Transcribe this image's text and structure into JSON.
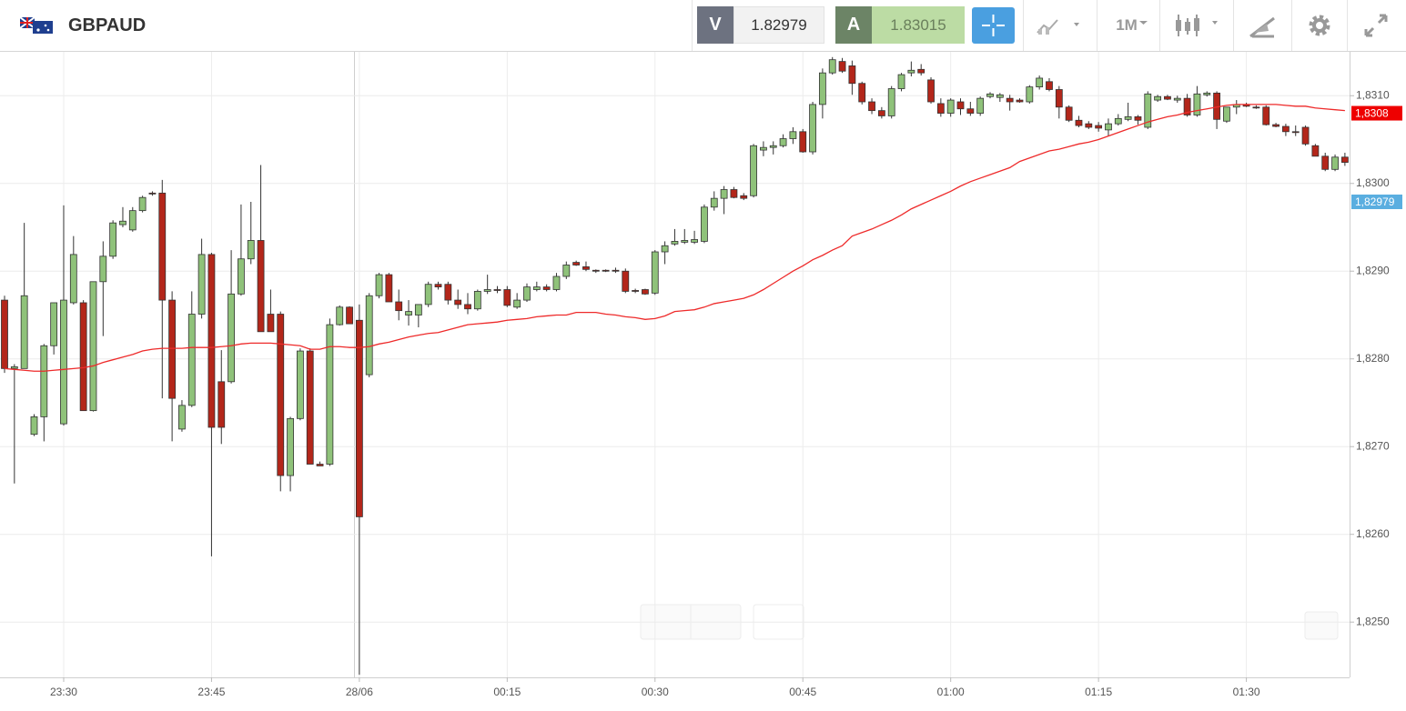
{
  "header": {
    "symbol": "GBPAUD",
    "sell_label": "V",
    "sell_price": 1.82979,
    "buy_label": "A",
    "buy_price": 1.83015,
    "timeframe": "1M"
  },
  "chart_data": {
    "type": "candlestick",
    "categories": [
      null,
      null,
      null,
      null,
      null,
      null,
      "23:30",
      null,
      null,
      null,
      null,
      null,
      null,
      null,
      null,
      null,
      null,
      null,
      null,
      null,
      null,
      "23:45",
      null,
      null,
      null,
      null,
      null,
      null,
      null,
      null,
      null,
      null,
      null,
      null,
      null,
      null,
      "28/06",
      null,
      null,
      null,
      null,
      null,
      null,
      null,
      null,
      null,
      null,
      null,
      null,
      null,
      null,
      "00:15",
      null,
      null,
      null,
      null,
      null,
      null,
      null,
      null,
      null,
      null,
      null,
      null,
      null,
      null,
      "00:30",
      null,
      null,
      null,
      null,
      null,
      null,
      null,
      null,
      null,
      null,
      null,
      null,
      null,
      null,
      "00:45",
      null,
      null,
      null,
      null,
      null,
      null,
      null,
      null,
      null,
      null,
      null,
      null,
      null,
      null,
      "01:00",
      null,
      null,
      null,
      null,
      null,
      null,
      null,
      null,
      null,
      null,
      null,
      null,
      null,
      null,
      "01:15",
      null,
      null,
      null,
      null,
      null,
      null,
      null,
      null,
      null,
      null,
      null,
      null,
      null,
      null,
      "01:30",
      null,
      null,
      null,
      null,
      null,
      null,
      null,
      null,
      null,
      null
    ],
    "open": [
      1.82867,
      1.82789,
      1.82789,
      1.82714,
      1.82734,
      1.82815,
      1.82726,
      1.82864,
      1.82864,
      1.82741,
      1.82888,
      1.82917,
      1.82953,
      1.82947,
      1.82969,
      1.82989,
      1.82989,
      1.82867,
      1.8272,
      1.82747,
      1.82851,
      1.82919,
      1.82774,
      1.82774,
      1.82874,
      1.82914,
      1.82935,
      1.82851,
      1.82851,
      1.82667,
      1.82732,
      1.82809,
      1.8268,
      1.8268,
      1.82839,
      1.82859,
      1.82844,
      1.82782,
      1.82872,
      1.82896,
      1.82865,
      1.8285,
      1.8285,
      1.82862,
      1.82885,
      1.82885,
      1.82867,
      1.82862,
      1.82857,
      1.82877,
      1.82879,
      1.82879,
      1.82859,
      1.82867,
      1.82879,
      1.82882,
      1.82879,
      1.82894,
      1.8291,
      1.82905,
      1.82901,
      1.82901,
      1.82901,
      1.829,
      1.82878,
      1.82879,
      1.82875,
      1.82922,
      1.82931,
      1.82933,
      1.82933,
      1.82934,
      1.82973,
      1.82983,
      1.82993,
      1.82986,
      1.82986,
      1.83038,
      1.83041,
      1.83043,
      1.83051,
      1.83059,
      1.83036,
      1.8309,
      1.83126,
      1.83139,
      1.83134,
      1.83114,
      1.83093,
      1.83083,
      1.83077,
      1.83108,
      1.83126,
      1.8313,
      1.83118,
      1.83091,
      1.8308,
      1.83093,
      1.83085,
      1.8308,
      1.83099,
      1.83098,
      1.83097,
      1.83095,
      1.83093,
      1.8311,
      1.83116,
      1.83107,
      1.83087,
      1.83072,
      1.83068,
      1.83066,
      1.83061,
      1.83068,
      1.83073,
      1.83076,
      1.83064,
      1.83095,
      1.83099,
      1.83095,
      1.83097,
      1.83078,
      1.83101,
      1.83103,
      1.83071,
      1.83087,
      1.8309,
      1.83087,
      1.83087,
      1.83067,
      1.83065,
      1.83059,
      1.83064,
      1.83043,
      1.83031,
      1.83016,
      1.8303
    ],
    "high": [
      1.82872,
      1.82794,
      1.82955,
      1.82737,
      1.82817,
      1.82864,
      1.82975,
      1.8294,
      1.82867,
      1.82888,
      1.82934,
      1.82958,
      1.82973,
      1.82973,
      1.82986,
      1.82991,
      1.83004,
      1.82877,
      1.82753,
      1.82877,
      1.82937,
      1.82921,
      1.8281,
      1.82924,
      1.82976,
      1.82979,
      1.83021,
      1.82879,
      1.82854,
      1.82734,
      1.82812,
      1.82812,
      1.82683,
      1.82846,
      1.82861,
      1.8286,
      1.82862,
      1.82875,
      1.82898,
      1.82898,
      1.82879,
      1.82867,
      1.82862,
      1.82888,
      1.82888,
      1.82888,
      1.82879,
      1.82875,
      1.82879,
      1.82896,
      1.82883,
      1.82883,
      1.82875,
      1.82886,
      1.82888,
      1.82885,
      1.82898,
      1.82911,
      1.82912,
      1.82911,
      1.82902,
      1.82902,
      1.82904,
      1.82903,
      1.8288,
      1.8288,
      1.82924,
      1.82934,
      1.82948,
      1.82948,
      1.82946,
      1.82976,
      1.82991,
      1.82997,
      1.82996,
      1.82989,
      1.83045,
      1.83048,
      1.83048,
      1.83056,
      1.83064,
      1.83062,
      1.83093,
      1.83131,
      1.83144,
      1.83143,
      1.8314,
      1.83116,
      1.83097,
      1.83087,
      1.83111,
      1.83126,
      1.83139,
      1.83136,
      1.83121,
      1.83097,
      1.83097,
      1.83097,
      1.83093,
      1.83099,
      1.83104,
      1.83103,
      1.83101,
      1.83097,
      1.83112,
      1.83123,
      1.8312,
      1.83111,
      1.83089,
      1.83077,
      1.83071,
      1.8307,
      1.83074,
      1.83079,
      1.83092,
      1.83078,
      1.83105,
      1.83101,
      1.83101,
      1.831,
      1.83102,
      1.83111,
      1.83105,
      1.83105,
      1.83087,
      1.83095,
      1.83092,
      1.83089,
      1.83089,
      1.83069,
      1.83068,
      1.83066,
      1.83066,
      1.83045,
      1.83035,
      1.83033,
      1.83035
    ],
    "low": [
      1.82784,
      1.82658,
      1.82789,
      1.82712,
      1.82706,
      1.82805,
      1.82724,
      1.82862,
      1.82741,
      1.8274,
      1.82826,
      1.82914,
      1.8295,
      1.82945,
      1.82967,
      1.82986,
      1.82755,
      1.82706,
      1.82717,
      1.82745,
      1.82846,
      1.82575,
      1.82703,
      1.82772,
      1.82872,
      1.82908,
      1.82831,
      1.82831,
      1.82649,
      1.82649,
      1.8273,
      1.8268,
      1.82678,
      1.82678,
      1.82838,
      1.8284,
      1.8244,
      1.82779,
      1.82869,
      1.82865,
      1.82844,
      1.82838,
      1.82836,
      1.82859,
      1.82879,
      1.82862,
      1.82857,
      1.82851,
      1.82855,
      1.82874,
      1.82875,
      1.82859,
      1.82857,
      1.82865,
      1.82877,
      1.82877,
      1.82877,
      1.82891,
      1.82906,
      1.829,
      1.82898,
      1.82899,
      1.82898,
      1.82875,
      1.82875,
      1.82873,
      1.82873,
      1.82908,
      1.82929,
      1.82931,
      1.82931,
      1.82932,
      1.82969,
      1.82965,
      1.82983,
      1.82981,
      1.82984,
      1.83031,
      1.83033,
      1.83041,
      1.83045,
      1.83035,
      1.83033,
      1.83074,
      1.83124,
      1.83126,
      1.83101,
      1.8309,
      1.83079,
      1.83074,
      1.83074,
      1.83105,
      1.83122,
      1.83123,
      1.83091,
      1.83076,
      1.83076,
      1.83078,
      1.83077,
      1.83077,
      1.83097,
      1.83093,
      1.83083,
      1.83092,
      1.83091,
      1.83107,
      1.83105,
      1.83074,
      1.8307,
      1.83064,
      1.83062,
      1.83059,
      1.83054,
      1.83066,
      1.83071,
      1.83067,
      1.83062,
      1.83093,
      1.83095,
      1.83092,
      1.83076,
      1.83076,
      1.83099,
      1.83062,
      1.83069,
      1.83079,
      1.83087,
      1.83085,
      1.83066,
      1.83064,
      1.83054,
      1.83054,
      1.83043,
      1.83031,
      1.83014,
      1.83014,
      1.8302
    ],
    "close": [
      1.82789,
      1.82791,
      1.82872,
      1.82734,
      1.82815,
      1.82864,
      1.82867,
      1.82919,
      1.82741,
      1.82888,
      1.82917,
      1.82955,
      1.82957,
      1.82969,
      1.82984,
      1.82988,
      1.82867,
      1.82755,
      1.82747,
      1.82851,
      1.82919,
      1.82722,
      1.82722,
      1.82874,
      1.82914,
      1.82935,
      1.82831,
      1.82831,
      1.82667,
      1.82732,
      1.82809,
      1.8268,
      1.82678,
      1.82839,
      1.82859,
      1.8284,
      1.8262,
      1.82872,
      1.82896,
      1.82865,
      1.82855,
      1.82854,
      1.82862,
      1.82885,
      1.82882,
      1.82867,
      1.82862,
      1.82857,
      1.82877,
      1.82879,
      1.82878,
      1.82861,
      1.82867,
      1.82882,
      1.82882,
      1.82879,
      1.82894,
      1.82907,
      1.82907,
      1.82902,
      1.829,
      1.829,
      1.829,
      1.82877,
      1.82877,
      1.82874,
      1.82922,
      1.82929,
      1.82934,
      1.82935,
      1.82936,
      1.82973,
      1.82983,
      1.82993,
      1.82984,
      1.82983,
      1.83043,
      1.83041,
      1.83043,
      1.83051,
      1.83059,
      1.83036,
      1.8309,
      1.83126,
      1.83141,
      1.83128,
      1.83114,
      1.83093,
      1.83083,
      1.83077,
      1.83108,
      1.83124,
      1.83129,
      1.83126,
      1.83093,
      1.8308,
      1.83095,
      1.83085,
      1.8308,
      1.83097,
      1.83102,
      1.83101,
      1.83093,
      1.83093,
      1.8311,
      1.8312,
      1.83107,
      1.83087,
      1.83072,
      1.83066,
      1.83064,
      1.83063,
      1.83068,
      1.83074,
      1.83076,
      1.83072,
      1.83102,
      1.83099,
      1.83096,
      1.83097,
      1.83078,
      1.83102,
      1.83103,
      1.83073,
      1.83087,
      1.8309,
      1.83088,
      1.83086,
      1.83067,
      1.83065,
      1.83059,
      1.83058,
      1.83045,
      1.83031,
      1.83016,
      1.8303,
      1.83024
    ],
    "up_color": "#8fc27a",
    "down_color": "#b3261a",
    "overlay": {
      "type": "line",
      "color": "#ee2a2a",
      "values": [
        1.82789,
        1.82788,
        1.82787,
        1.82786,
        1.82786,
        1.82787,
        1.82788,
        1.82789,
        1.8279,
        1.82792,
        1.82796,
        1.82799,
        1.82802,
        1.82805,
        1.82809,
        1.82811,
        1.82812,
        1.82812,
        1.82812,
        1.82813,
        1.82813,
        1.82813,
        1.82814,
        1.82815,
        1.82817,
        1.82818,
        1.82818,
        1.82818,
        1.82817,
        1.82816,
        1.82815,
        1.82811,
        1.82811,
        1.82814,
        1.82814,
        1.82813,
        1.82813,
        1.82814,
        1.82817,
        1.82819,
        1.82822,
        1.82825,
        1.82827,
        1.82829,
        1.8283,
        1.82833,
        1.82836,
        1.82839,
        1.8284,
        1.82841,
        1.82842,
        1.82844,
        1.82845,
        1.82846,
        1.82848,
        1.82849,
        1.8285,
        1.8285,
        1.82853,
        1.82853,
        1.82853,
        1.82851,
        1.8285,
        1.82848,
        1.82847,
        1.82845,
        1.82846,
        1.82849,
        1.82854,
        1.82855,
        1.82856,
        1.82859,
        1.82863,
        1.82865,
        1.82867,
        1.82869,
        1.82873,
        1.82879,
        1.82886,
        1.82893,
        1.829,
        1.82906,
        1.82913,
        1.82918,
        1.82924,
        1.82929,
        1.8294,
        1.82944,
        1.82948,
        1.82953,
        1.82958,
        1.82964,
        1.82971,
        1.82976,
        1.82981,
        1.82986,
        1.82991,
        1.82997,
        1.83002,
        1.83006,
        1.8301,
        1.83014,
        1.83018,
        1.83025,
        1.83029,
        1.83033,
        1.83037,
        1.83039,
        1.83042,
        1.83045,
        1.83047,
        1.8305,
        1.83054,
        1.83058,
        1.83062,
        1.83066,
        1.8307,
        1.83073,
        1.83076,
        1.83078,
        1.83081,
        1.83083,
        1.83085,
        1.83087,
        1.83089,
        1.8309,
        1.8309,
        1.8309,
        1.8309,
        1.8309,
        1.83089,
        1.83088,
        1.83088,
        1.83086,
        1.83085,
        1.83084,
        1.83083
      ]
    },
    "ylim": [
      1.82437,
      1.8315
    ],
    "yticks": [
      {
        "value": 1.825,
        "label": "1,8250"
      },
      {
        "value": 1.826,
        "label": "1,8260"
      },
      {
        "value": 1.827,
        "label": "1,8270"
      },
      {
        "value": 1.828,
        "label": "1,8280"
      },
      {
        "value": 1.829,
        "label": "1,8290"
      },
      {
        "value": 1.83,
        "label": "1,8300"
      },
      {
        "value": 1.831,
        "label": "1,8310"
      }
    ],
    "price_tags": [
      {
        "value": 1.8308,
        "label": "1,8308",
        "color": "#ee0000"
      },
      {
        "value": 1.82979,
        "label": "1,82979",
        "color": "#5aaee0"
      }
    ],
    "grid": true
  }
}
